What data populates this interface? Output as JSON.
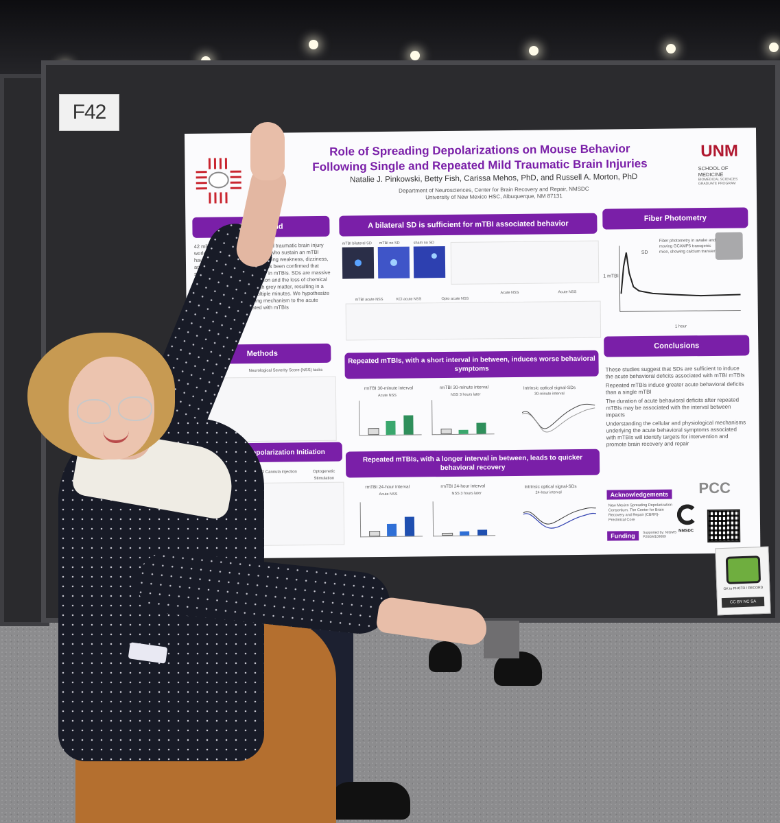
{
  "booth": {
    "label": "F42"
  },
  "poster": {
    "title_line1": "Role of Spreading Depolarizations on Mouse Behavior",
    "title_line2": "Following Single and Repeated Mild Traumatic Brain Injuries",
    "authors": "Natalie J. Pinkowski, Betty Fish, Carissa Mehos, PhD, and Russell A. Morton, PhD",
    "affiliation1": "Department of Neurosciences, Center for Brain Recovery and Repair, NMSDC",
    "affiliation2": "University of New Mexico HSC, Albuquerque, NM 87131",
    "school_logo": "UNM",
    "school_name": "SCHOOL OF MEDICINE",
    "school_sub": "BIOMEDICAL SCIENCES GRADUATE PROGRAM",
    "sections": {
      "background": "Background",
      "methods": "Methods",
      "sd_initiation": "Spreading Depolarization Initiation",
      "bilateral": "A bilateral SD is sufficient for mTBI associated behavior",
      "repeated_short": "Repeated mTBIs, with a short interval in between, induces worse behavioral symptoms",
      "repeated_long": "Repeated mTBIs, with a longer interval in between, leads to quicker behavioral recovery",
      "fiber": "Fiber Photometry",
      "conclusions": "Conclusions",
      "acknowledgements": "Acknowledgements",
      "funding": "Funding"
    },
    "background_text": "42 million people experience a mild traumatic brain injury worldwide every year. Individuals who sustain an mTBI have a variety of symptoms including weakness, dizziness, and an altered mental state. It has been confirmed that spreading depolarizations occur in mTBIs. SDs are massive waves of complete depolarization and the loss of chemical gradients, propagating through grey matter, resulting in a neuronal cascade lasting multiple minutes. We hypothesize that SDs are a key underlying mechanism to the acute behavioral deficits associated with mTBIs",
    "methods_text": "Neurological Severity Score (NSS) tasks",
    "panel_labels": [
      "mTBI bilateral SD",
      "mTBI no SD",
      "sham no SD"
    ],
    "chart_titles": [
      "mTBI acute NSS",
      "KCl acute NSS",
      "Opto acute NSS",
      "Acute NSS",
      "Acute NSS"
    ],
    "short_charts": [
      "rmTBI 30-minute interval",
      "rmTBI 30-minute interval",
      "Intrinsic optical signal-SDs"
    ],
    "short_subs": [
      "Acute NSS",
      "NSS 3 hours later",
      "30-minute interval"
    ],
    "long_charts": [
      "rmTBI 24-hour interval",
      "rmTBI 24-hour interval",
      "Intrinsic optical signal-SDs"
    ],
    "long_subs": [
      "Acute NSS",
      "NSS 3 hours later",
      "24-hour interval"
    ],
    "initiation_labels": [
      "KCl Cannula injection",
      "Optogenetic Stimulation"
    ],
    "fiber_text": "Fiber photometry in awake and moving GCAMP5 transgenic mice, showing calcium transience",
    "fiber_labels": {
      "sd": "SD",
      "mtbi": "1 mTBI",
      "time": "1 hour"
    },
    "conclusions_text": [
      "These studies suggest that SDs are sufficient to induce the acute behavioral deficits associated with mTBI mTBIs",
      "Repeated mTBIs induce greater acute behavioral deficits than a single mTBI",
      "The duration of acute behavioral deficits after repeated mTBIs may be associated with the interval between impacts",
      "Understanding the cellular and physiological mechanisms underlying the acute behavioral symptoms associated with mTBIs will identify targets for intervention and promote brain recovery and repair"
    ],
    "ack_text": "New Mexico Spreading Depolarization Consortium. The Center for Brain Recovery and Repair (CBRR)-Preclinical Core",
    "funding_text": "Supported by: NIGMS P20GM109089",
    "pcc_logo": "PCC",
    "nmsdc_logo": "NMSDC"
  },
  "photo_tag": {
    "text": "OK to PHOTO / RECORD",
    "license": "CC BY NC SA"
  },
  "colors": {
    "purple": "#7a1fa8",
    "board": "#2b2b2e",
    "pants": "#b46f2f"
  }
}
